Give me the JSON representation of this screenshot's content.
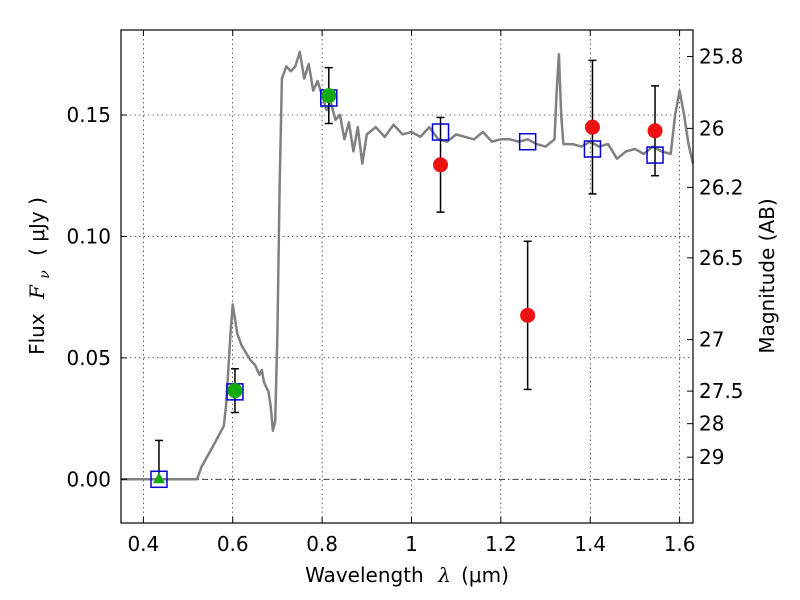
{
  "chart_data": {
    "type": "scatter",
    "xlabel_text": "Wavelength",
    "xlabel_symbol": "λ",
    "xlabel_units": "(μm)",
    "ylabel_text": "Flux",
    "ylabel_symbol": "F",
    "ylabel_subscript": "ν",
    "ylabel_units": "( μJy )",
    "y2label": "Magnitude (AB)",
    "xlim": [
      0.35,
      1.63
    ],
    "ylim": [
      -0.018,
      0.185
    ],
    "xticks": [
      0.4,
      0.6,
      0.8,
      1.0,
      1.2,
      1.4,
      1.6
    ],
    "xtick_labels": [
      "0.4",
      "0.6",
      "0.8",
      "1",
      "1.2",
      "1.4",
      "1.6"
    ],
    "yticks": [
      0.0,
      0.05,
      0.1,
      0.15
    ],
    "ytick_labels": [
      "0.00",
      "0.05",
      "0.10",
      "0.15"
    ],
    "y2ticks": [
      {
        "label": "25.8",
        "flux": 0.1741
      },
      {
        "label": "26",
        "flux": 0.1445
      },
      {
        "label": "26.2",
        "flux": 0.1202
      },
      {
        "label": "26.5",
        "flux": 0.0912
      },
      {
        "label": "27",
        "flux": 0.0575
      },
      {
        "label": "27.5",
        "flux": 0.0363
      },
      {
        "label": "28",
        "flux": 0.0229
      },
      {
        "label": "29",
        "flux": 0.0091
      }
    ],
    "grid": true,
    "zero_line": true,
    "series": [
      {
        "name": "model-sed",
        "kind": "line",
        "color": "#808080",
        "x": [
          0.35,
          0.52,
          0.53,
          0.56,
          0.58,
          0.585,
          0.59,
          0.595,
          0.6,
          0.605,
          0.61,
          0.62,
          0.63,
          0.64,
          0.65,
          0.655,
          0.66,
          0.665,
          0.67,
          0.675,
          0.68,
          0.685,
          0.69,
          0.695,
          0.7,
          0.705,
          0.71,
          0.72,
          0.73,
          0.74,
          0.75,
          0.76,
          0.77,
          0.78,
          0.79,
          0.8,
          0.81,
          0.82,
          0.83,
          0.84,
          0.85,
          0.86,
          0.87,
          0.88,
          0.89,
          0.9,
          0.92,
          0.94,
          0.96,
          0.98,
          1.0,
          1.02,
          1.04,
          1.06,
          1.08,
          1.1,
          1.12,
          1.14,
          1.16,
          1.18,
          1.2,
          1.22,
          1.24,
          1.26,
          1.28,
          1.3,
          1.32,
          1.325,
          1.33,
          1.335,
          1.34,
          1.36,
          1.38,
          1.4,
          1.42,
          1.44,
          1.46,
          1.48,
          1.5,
          1.52,
          1.54,
          1.56,
          1.58,
          1.59,
          1.6,
          1.61,
          1.62,
          1.63
        ],
        "values": [
          0.0,
          0.0,
          0.005,
          0.015,
          0.022,
          0.03,
          0.045,
          0.06,
          0.072,
          0.066,
          0.06,
          0.055,
          0.052,
          0.049,
          0.047,
          0.045,
          0.043,
          0.045,
          0.04,
          0.038,
          0.036,
          0.03,
          0.02,
          0.024,
          0.06,
          0.12,
          0.165,
          0.17,
          0.168,
          0.17,
          0.176,
          0.165,
          0.171,
          0.16,
          0.164,
          0.158,
          0.152,
          0.155,
          0.148,
          0.15,
          0.14,
          0.147,
          0.135,
          0.145,
          0.13,
          0.142,
          0.145,
          0.141,
          0.146,
          0.142,
          0.143,
          0.141,
          0.145,
          0.14,
          0.139,
          0.142,
          0.141,
          0.14,
          0.143,
          0.139,
          0.14,
          0.14,
          0.139,
          0.14,
          0.138,
          0.137,
          0.14,
          0.16,
          0.175,
          0.15,
          0.138,
          0.138,
          0.137,
          0.139,
          0.137,
          0.138,
          0.132,
          0.135,
          0.136,
          0.134,
          0.137,
          0.135,
          0.134,
          0.15,
          0.16,
          0.15,
          0.138,
          0.13
        ]
      },
      {
        "name": "observed-detections",
        "kind": "points-errorbars",
        "marker": "circle",
        "color": "#ee1111",
        "x": [
          1.065,
          1.26,
          1.405,
          1.545
        ],
        "values": [
          0.1295,
          0.0675,
          0.145,
          0.1435
        ],
        "errors": [
          0.0195,
          0.0305,
          0.0275,
          0.0185
        ]
      },
      {
        "name": "observed-green",
        "kind": "points-errorbars",
        "marker": "circle",
        "color": "#11aa11",
        "x": [
          0.605,
          0.815
        ],
        "values": [
          0.0365,
          0.158
        ],
        "errors": [
          0.009,
          0.0115
        ]
      },
      {
        "name": "upper-limit",
        "kind": "points-errorbars",
        "marker": "triangle",
        "color": "#11aa11",
        "x": [
          0.435
        ],
        "values": [
          0.0
        ],
        "errors": [
          0.016
        ]
      },
      {
        "name": "model-photometry",
        "kind": "points",
        "marker": "square",
        "color": "#0000cc",
        "x": [
          0.435,
          0.605,
          0.815,
          1.065,
          1.26,
          1.405,
          1.545
        ],
        "values": [
          0.0,
          0.036,
          0.157,
          0.143,
          0.139,
          0.136,
          0.1335
        ]
      }
    ]
  }
}
